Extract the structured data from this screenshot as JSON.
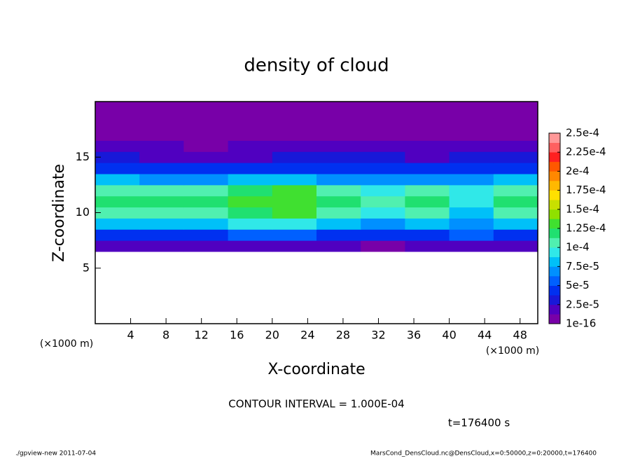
{
  "chart_data": {
    "type": "heatmap",
    "title": "density of cloud",
    "x_label": "X-coordinate",
    "y_label": "Z-coordinate",
    "x_unit_left": "(×1000 m)",
    "x_unit_right": "(×1000 m)",
    "xlim": [
      0,
      50
    ],
    "xticks": [
      4,
      8,
      12,
      16,
      20,
      24,
      28,
      32,
      36,
      40,
      44,
      48
    ],
    "ylim": [
      0,
      20
    ],
    "yticks": [
      5,
      10,
      15
    ],
    "x": [
      2.5,
      7.5,
      12.5,
      17.5,
      22.5,
      27.5,
      32.5,
      37.5,
      42.5,
      47.5
    ],
    "y": [
      7,
      8,
      9,
      10,
      11,
      12,
      13,
      14,
      15,
      16,
      17,
      18,
      19,
      20
    ],
    "z": [
      [
        2e-05,
        2e-05,
        1.5e-05,
        1.8e-05,
        2e-05,
        2e-05,
        1e-05,
        2e-05,
        2e-05,
        1.8e-05
      ],
      [
        4.5e-05,
        4e-05,
        4.5e-05,
        5e-05,
        5e-05,
        4.5e-05,
        4e-05,
        4.5e-05,
        5.5e-05,
        4.5e-05
      ],
      [
        8e-05,
        7.5e-05,
        8e-05,
        9e-05,
        9.5e-05,
        8.5e-05,
        7e-05,
        8e-05,
        7e-05,
        8e-05
      ],
      [
        0.00011,
        0.000105,
        0.00011,
        0.00012,
        0.000125,
        0.00011,
        9e-05,
        0.000105,
        8e-05,
        0.000105
      ],
      [
        0.00012,
        0.000115,
        0.00012,
        0.00013,
        0.000135,
        0.00012,
        0.0001,
        0.00012,
        9.5e-05,
        0.00012
      ],
      [
        0.000105,
        0.0001,
        0.000105,
        0.00012,
        0.000125,
        0.000105,
        9e-05,
        0.000105,
        9e-05,
        0.00011
      ],
      [
        7.5e-05,
        6.5e-05,
        6.5e-05,
        7.5e-05,
        7.5e-05,
        6.5e-05,
        6.5e-05,
        7e-05,
        6.5e-05,
        7.5e-05
      ],
      [
        4.5e-05,
        4e-05,
        4e-05,
        4.5e-05,
        4.5e-05,
        4e-05,
        4e-05,
        4.5e-05,
        4e-05,
        4.5e-05
      ],
      [
        2.5e-05,
        2.2e-05,
        2e-05,
        2e-05,
        2.5e-05,
        2.5e-05,
        2.5e-05,
        2e-05,
        2.5e-05,
        2.5e-05
      ],
      [
        1.8e-05,
        1.5e-05,
        1.2e-05,
        1.3e-05,
        1.5e-05,
        1.6e-05,
        1.6e-05,
        1.3e-05,
        1.8e-05,
        1.8e-05
      ],
      [
        1e-05,
        1.2e-05,
        8e-06,
        8e-06,
        1e-05,
        1.2e-05,
        1e-05,
        8e-06,
        1e-05,
        1.2e-05
      ],
      [
        6e-06,
        7e-06,
        5e-06,
        6e-06,
        5e-06,
        6e-06,
        5e-06,
        6e-06,
        6e-06,
        7e-06
      ],
      [
        5e-06,
        5e-06,
        4e-06,
        4e-06,
        4e-06,
        5e-06,
        4e-06,
        4e-06,
        3e-06,
        4e-06
      ],
      [
        3e-06,
        3e-06,
        3e-06,
        3e-06,
        3e-06,
        3e-06,
        3e-06,
        3e-06,
        3e-06,
        3e-06
      ]
    ],
    "colorbar": {
      "lim": [
        0,
        0.00025
      ],
      "ticks": [
        {
          "value": 1e-16,
          "label": "1e-16"
        },
        {
          "value": 2.5e-05,
          "label": "2.5e-5"
        },
        {
          "value": 5e-05,
          "label": "5e-5"
        },
        {
          "value": 7.5e-05,
          "label": "7.5e-5"
        },
        {
          "value": 0.0001,
          "label": "1e-4"
        },
        {
          "value": 0.000125,
          "label": "1.25e-4"
        },
        {
          "value": 0.00015,
          "label": "1.5e-4"
        },
        {
          "value": 0.000175,
          "label": "1.75e-4"
        },
        {
          "value": 0.0002,
          "label": "2e-4"
        },
        {
          "value": 0.000225,
          "label": "2.25e-4"
        },
        {
          "value": 0.00025,
          "label": "2.5e-4"
        }
      ],
      "colors": [
        "#7800a8",
        "#5000c0",
        "#1818d8",
        "#0030f0",
        "#0060ff",
        "#0090ff",
        "#00c0f8",
        "#30e8e8",
        "#50f0b0",
        "#20e070",
        "#40e030",
        "#90e000",
        "#c8e000",
        "#ffe000",
        "#ffb800",
        "#ff8800",
        "#ff5800",
        "#ff2020",
        "#ff6060",
        "#ff9898"
      ]
    },
    "contour_note": "CONTOUR INTERVAL = 1.000E-04",
    "time_note": "t=176400 s",
    "footer_left": "./gpview-new  2011-07-04",
    "footer_right": "MarsCond_DensCloud.nc@DensCloud,x=0:50000,z=0:20000,t=176400"
  }
}
